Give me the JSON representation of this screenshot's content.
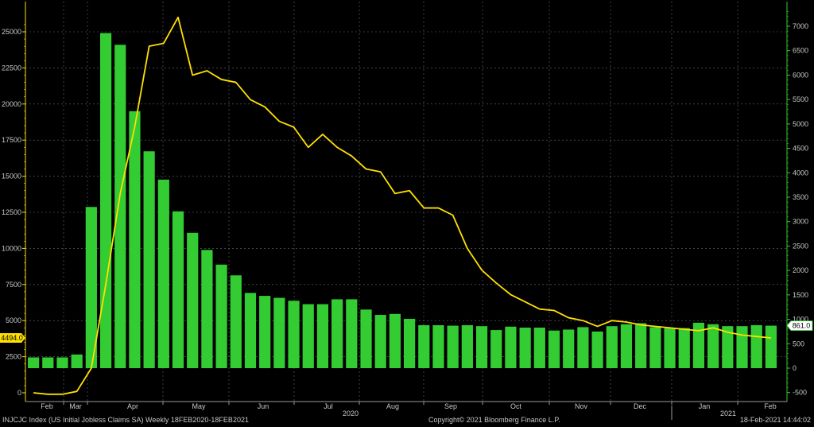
{
  "footer": {
    "left": "INJCJC Index (US Initial Jobless Claims SA)  Weekly 18FEB2020-18FEB2021",
    "center": "Copyright© 2021 Bloomberg Finance L.P.",
    "right": "18-Feb-2021 14:44:02"
  },
  "chart_data": {
    "type": "bar",
    "bar_color": "#33cc33",
    "line_color": "#ffe000",
    "left_axis_color": "#ffe000",
    "right_axis_color": "#33cc33",
    "left_ticks": [
      "0",
      "2500",
      "5000",
      "7500",
      "10000",
      "12500",
      "15000",
      "17500",
      "20000",
      "22500",
      "25000"
    ],
    "right_ticks": [
      "-500",
      "0",
      "500",
      "1000",
      "1500",
      "2000",
      "2500",
      "3000",
      "3500",
      "4000",
      "4500",
      "5000",
      "5500",
      "6000",
      "6500",
      "7000"
    ],
    "ylim_left": [
      -800,
      26000
    ],
    "ylim_right": [
      -500,
      7400
    ],
    "months": [
      "Feb",
      "Mar",
      "Apr",
      "May",
      "Jun",
      "Jul",
      "Aug",
      "Sep",
      "Oct",
      "Nov",
      "Dec",
      "Jan",
      "Feb"
    ],
    "years": [
      "2020",
      "2021"
    ],
    "series": [
      {
        "axis": "right",
        "values": [
          220,
          220,
          220,
          280,
          3300,
          6860,
          6620,
          5260,
          4440,
          3860,
          3210,
          2770,
          2420,
          2120,
          1900,
          1540,
          1480,
          1440,
          1380,
          1310,
          1310,
          1410,
          1410,
          1200,
          1090,
          1110,
          1010,
          880,
          880,
          870,
          880,
          860,
          780,
          850,
          830,
          830,
          770,
          790,
          840,
          750,
          860,
          900,
          920,
          840,
          820,
          820,
          930,
          900,
          860,
          860,
          880,
          870
        ],
        "value_label": "861.0"
      },
      {
        "axis": "left",
        "values": [
          0,
          -100,
          -100,
          100,
          1700,
          7500,
          13800,
          18400,
          24000,
          24200,
          26000,
          22000,
          22300,
          21700,
          21500,
          20300,
          19800,
          18800,
          18400,
          17000,
          17900,
          17000,
          16400,
          15500,
          15300,
          13800,
          14000,
          12800,
          12800,
          12300,
          10000,
          8500,
          7600,
          6800,
          6300,
          5800,
          5700,
          5200,
          5000,
          4600,
          5000,
          4900,
          4700,
          4600,
          4500,
          4400,
          4300,
          4500,
          4200,
          4000,
          3900,
          3800
        ],
        "value_label": "4494.0"
      }
    ]
  }
}
